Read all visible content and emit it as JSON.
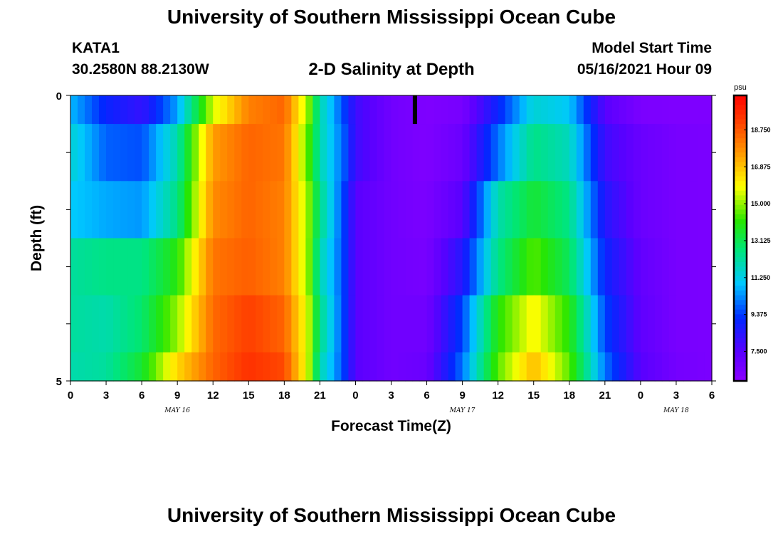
{
  "header": {
    "title": "University of Southern Mississippi Ocean Cube",
    "station": "KATA1",
    "coordinates": "30.2580N  88.2130W",
    "subtitle": "2-D Salinity at Depth",
    "start_label": "Model Start Time",
    "start_value": "05/16/2021 Hour 09"
  },
  "footer": {
    "title": "University of Southern Mississippi Ocean Cube"
  },
  "chart_data": {
    "type": "heatmap",
    "title": "2-D Salinity at Depth",
    "xlabel": "Forecast Time(Z)",
    "ylabel": "Depth (ft)",
    "ylim": [
      0,
      5
    ],
    "y_ticks": [
      "0",
      "5"
    ],
    "x_ticks": [
      "0",
      "3",
      "6",
      "9",
      "12",
      "15",
      "18",
      "21",
      "0",
      "3",
      "6",
      "9",
      "12",
      "15",
      "18",
      "21",
      "0",
      "3",
      "6"
    ],
    "x_range_hours": [
      0,
      54
    ],
    "date_labels": [
      {
        "label": "MAY 16",
        "hour": 9
      },
      {
        "label": "MAY 17",
        "hour": 33
      },
      {
        "label": "MAY 18",
        "hour": 51
      }
    ],
    "colorbar": {
      "unit": "psu",
      "min": 6.0,
      "max": 20.5,
      "tick_labels": [
        "18.750",
        "16.875",
        "15.000",
        "13.125",
        "11.250",
        "9.375",
        "7.500"
      ],
      "tick_values": [
        18.75,
        16.875,
        15.0,
        13.125,
        11.25,
        9.375,
        7.5
      ]
    },
    "depth_layer_bounds_ft": [
      0,
      0.5,
      1.5,
      2.5,
      3.5,
      4.5,
      5
    ],
    "series_hours": [
      0,
      3,
      6,
      9,
      12,
      15,
      18,
      20,
      21,
      23,
      24,
      27,
      30,
      33,
      36,
      39,
      42,
      45,
      48,
      51,
      54
    ],
    "series": [
      {
        "values": [
          10.8,
          9.0,
          8.2,
          10.5,
          15.5,
          18.0,
          18.5,
          15.0,
          12.0,
          9.5,
          8.0,
          6.8,
          6.4,
          6.6,
          9.0,
          11.5,
          11.0,
          7.5,
          6.5,
          6.4,
          6.4
        ]
      },
      {
        "values": [
          11.5,
          9.8,
          9.6,
          12.0,
          17.5,
          18.5,
          18.2,
          14.5,
          12.0,
          9.8,
          8.0,
          6.8,
          6.4,
          7.0,
          10.0,
          12.5,
          11.8,
          8.0,
          7.0,
          6.6,
          6.5
        ]
      },
      {
        "values": [
          11.0,
          10.6,
          10.4,
          12.5,
          17.8,
          18.5,
          18.0,
          15.0,
          12.5,
          9.5,
          7.5,
          6.8,
          6.5,
          7.5,
          12.0,
          13.5,
          12.5,
          8.5,
          7.0,
          6.6,
          6.5
        ]
      },
      {
        "values": [
          12.2,
          12.5,
          12.5,
          14.0,
          18.2,
          18.6,
          18.0,
          15.0,
          12.0,
          9.5,
          7.5,
          6.8,
          6.6,
          8.5,
          12.5,
          14.5,
          13.0,
          9.0,
          7.2,
          6.6,
          6.5
        ]
      },
      {
        "values": [
          12.2,
          12.0,
          12.8,
          15.0,
          18.4,
          19.2,
          18.5,
          15.5,
          12.5,
          9.5,
          7.5,
          6.8,
          6.8,
          9.5,
          14.0,
          16.0,
          14.0,
          9.5,
          7.3,
          6.6,
          6.5
        ]
      },
      {
        "values": [
          12.0,
          12.2,
          13.5,
          16.5,
          18.5,
          19.5,
          19.0,
          15.5,
          12.0,
          9.5,
          7.5,
          6.8,
          7.0,
          10.0,
          14.5,
          17.0,
          14.5,
          10.0,
          7.5,
          6.7,
          6.5
        ]
      }
    ],
    "current_time_marker_hour": 29,
    "grid": false,
    "legend": "colorbar-right"
  }
}
